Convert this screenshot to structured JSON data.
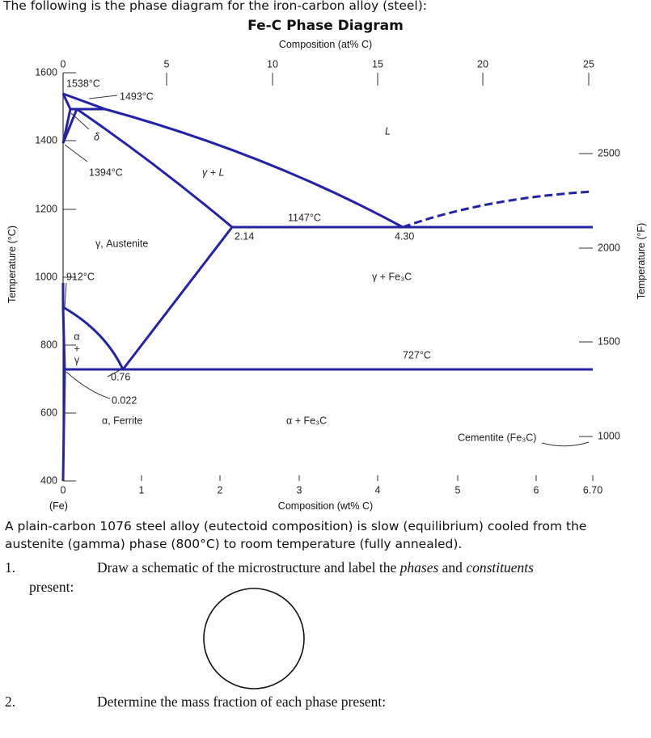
{
  "intro": "The following is the phase diagram for the iron-carbon alloy (steel):",
  "diagram": {
    "title": "Fe-C Phase Diagram",
    "top_axis_label": "Composition (at% C)",
    "top_ticks": [
      "0",
      "5",
      "10",
      "15",
      "20",
      "25"
    ],
    "bottom_axis_label": "Composition (wt% C)",
    "bottom_ticks": [
      "0",
      "1",
      "2",
      "3",
      "4",
      "5",
      "6",
      "6.70"
    ],
    "bottom_note": "(Fe)",
    "left_axis_label": "Temperature (°C)",
    "left_ticks": [
      "1600",
      "1400",
      "1200",
      "1000",
      "800",
      "600",
      "400"
    ],
    "right_axis_label": "Temperature (°F)",
    "right_ticks": [
      "2500",
      "2000",
      "1500",
      "1000"
    ],
    "annotations": [
      "1538°C",
      "1493°C",
      "δ",
      "1394°C",
      "γ + L",
      "L",
      "1147°C",
      "2.14",
      "4.30",
      "γ, Austenite",
      "912°C",
      "γ + Fe₃C",
      "α",
      "+",
      "γ",
      "727°C",
      "0.76",
      "0.022",
      "α, Ferrite",
      "α + Fe₃C",
      "Cementite (Fe₃C)"
    ]
  },
  "problem": "A plain-carbon 1076 steel alloy (eutectoid composition) is slow (equilibrium) cooled from the austenite (gamma) phase (800°C) to room temperature (fully annealed).",
  "questions": [
    {
      "number": "1.",
      "parts": [
        "Draw a schematic of the microstructure and label the ",
        "phases",
        " and ",
        "constituents"
      ],
      "continuation": "present:"
    },
    {
      "number": "2.",
      "text": "Determine the mass fraction of each phase present:"
    }
  ]
}
